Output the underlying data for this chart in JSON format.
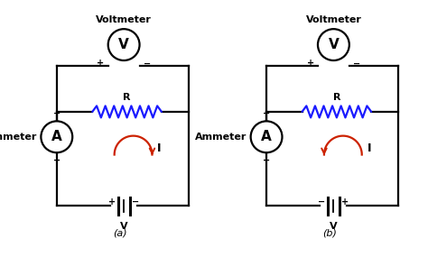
{
  "background_color": "#ffffff",
  "line_color": "#000000",
  "resistor_color": "#1a1aff",
  "current_arrow_color": "#cc2200",
  "voltmeter_label": "Voltmeter",
  "ammeter_label": "Ammeter",
  "V_label": "V",
  "A_label": "A",
  "R_label": "R",
  "I_label": "I",
  "battery_V_label": "V",
  "plus": "+",
  "minus": "−"
}
